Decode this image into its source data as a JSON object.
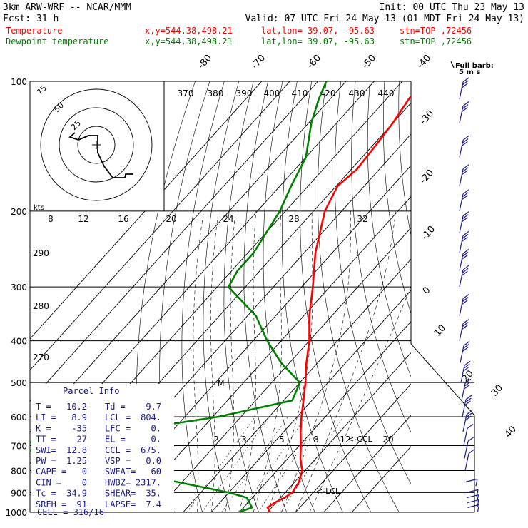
{
  "header": {
    "line1_left": "3km ARW-WRF -- NCAR/MMM",
    "line1_right": "Init: 00 UTC Thu 23 May 13",
    "line2_left": "Fcst:     31 h",
    "line2_right": "Valid: 07 UTC Fri 24 May 13 (01 MDT Fri 24 May 13)",
    "line3_label": "Temperature",
    "line3_xy": "x,y=544.38,498.21",
    "line3_latlon": "lat,lon= 39.07, -95.63",
    "line3_stn": "stn=TOP ,72456",
    "line4_label": "Dewpoint temperature",
    "line4_xy": "x,y=544.38,498.21",
    "line4_latlon": "lat,lon= 39.07, -95.63",
    "line4_stn": "stn=TOP ,72456",
    "barb_title": "Full barb:",
    "barb_units": "5 m s"
  },
  "colors": {
    "temperature": "#ff0000",
    "dewpoint": "#008000",
    "parcel_text": "#1a1a8a",
    "grid": "#000000"
  },
  "chart_data": {
    "type": "line",
    "pressure_ticks": [
      100,
      200,
      300,
      400,
      500,
      600,
      700,
      800,
      900,
      1000
    ],
    "isotherm_labels": [
      -80,
      -70,
      -60,
      -50,
      -40,
      -30,
      -20,
      -10,
      0,
      10,
      20,
      30,
      40
    ],
    "theta_labels": [
      370,
      380,
      390,
      400,
      410,
      420,
      430,
      440
    ],
    "theta_low_labels": [
      290,
      280,
      270
    ],
    "mixing_ratio_labels": [
      "2",
      "3",
      "5",
      "8",
      "12",
      "20"
    ],
    "hodograph_speed_labels": [
      "8",
      "12",
      "16",
      "20",
      "24",
      "28",
      "32"
    ],
    "hodograph_ring_labels": [
      "25",
      "50",
      "75"
    ],
    "hodograph_units": "kts",
    "lcl_label": "<-LCL",
    "ccl_label": "<-CCL",
    "series": [
      {
        "name": "Temperature",
        "color": "#ff0000",
        "points": [
          {
            "p": 1000,
            "t": 21.0
          },
          {
            "p": 975,
            "t": 18.5
          },
          {
            "p": 950,
            "t": 19.5
          },
          {
            "p": 925,
            "t": 21.5
          },
          {
            "p": 900,
            "t": 22.5
          },
          {
            "p": 850,
            "t": 21.5
          },
          {
            "p": 800,
            "t": 19.0
          },
          {
            "p": 750,
            "t": 14.5
          },
          {
            "p": 700,
            "t": 10.5
          },
          {
            "p": 650,
            "t": 6.0
          },
          {
            "p": 600,
            "t": 1.5
          },
          {
            "p": 550,
            "t": -3.0
          },
          {
            "p": 500,
            "t": -8.0
          },
          {
            "p": 450,
            "t": -14.0
          },
          {
            "p": 400,
            "t": -20.0
          },
          {
            "p": 350,
            "t": -28.0
          },
          {
            "p": 300,
            "t": -36.0
          },
          {
            "p": 250,
            "t": -46.0
          },
          {
            "p": 200,
            "t": -56.0
          },
          {
            "p": 175,
            "t": -59.5
          },
          {
            "p": 160,
            "t": -58.0
          },
          {
            "p": 140,
            "t": -59.0
          },
          {
            "p": 125,
            "t": -60.0
          },
          {
            "p": 110,
            "t": -62.0
          },
          {
            "p": 100,
            "t": -63.0
          }
        ]
      },
      {
        "name": "Dewpoint temperature",
        "color": "#008000",
        "points": [
          {
            "p": 1000,
            "t": 9.7
          },
          {
            "p": 975,
            "t": 13.0
          },
          {
            "p": 950,
            "t": 10.5
          },
          {
            "p": 925,
            "t": 8.0
          },
          {
            "p": 900,
            "t": 0.0
          },
          {
            "p": 850,
            "t": -22.0
          },
          {
            "p": 800,
            "t": -48.0
          },
          {
            "p": 750,
            "t": -68.0
          },
          {
            "p": 700,
            "t": -95.0
          },
          {
            "p": 650,
            "t": -58.0
          },
          {
            "p": 600,
            "t": -28.0
          },
          {
            "p": 550,
            "t": -7.0
          },
          {
            "p": 500,
            "t": -10.0
          },
          {
            "p": 450,
            "t": -23.0
          },
          {
            "p": 400,
            "t": -35.0
          },
          {
            "p": 350,
            "t": -47.0
          },
          {
            "p": 300,
            "t": -66.0
          },
          {
            "p": 275,
            "t": -68.0
          },
          {
            "p": 250,
            "t": -68.0
          },
          {
            "p": 200,
            "t": -72.0
          },
          {
            "p": 175,
            "t": -76.0
          },
          {
            "p": 150,
            "t": -80.0
          },
          {
            "p": 125,
            "t": -89.0
          },
          {
            "p": 110,
            "t": -94.0
          },
          {
            "p": 100,
            "t": -97.0
          }
        ]
      }
    ]
  },
  "parcel_info": {
    "title": "Parcel Info",
    "rows": [
      {
        "k1": "T  =",
        "v1": "10.2",
        "k2": "Td =",
        "v2": "9.7"
      },
      {
        "k1": "LI =",
        "v1": "8.9",
        "k2": "LCL =",
        "v2": "804."
      },
      {
        "k1": "K  =",
        "v1": "-35",
        "k2": "LFC =",
        "v2": "0."
      },
      {
        "k1": "TT =",
        "v1": "27",
        "k2": "EL  =",
        "v2": "0."
      },
      {
        "k1": "SWI=",
        "v1": "12.8",
        "k2": "CCL =",
        "v2": "675."
      },
      {
        "k1": "PW =",
        "v1": "1.25",
        "k2": "VSP =",
        "v2": "0.0"
      },
      {
        "k1": "CAPE =",
        "v1": "0",
        "k2": "SWEAT=",
        "v2": "60"
      },
      {
        "k1": "CIN =",
        "v1": "0",
        "k2": "HWBZ=",
        "v2": "2317."
      },
      {
        "k1": "Tc =",
        "v1": "34.9",
        "k2": "SHEAR=",
        "v2": "35."
      },
      {
        "k1": "SREH =",
        "v1": "91",
        "k2": "LAPSE=",
        "v2": "7.4"
      }
    ],
    "cell": "CELL = 316/16"
  }
}
